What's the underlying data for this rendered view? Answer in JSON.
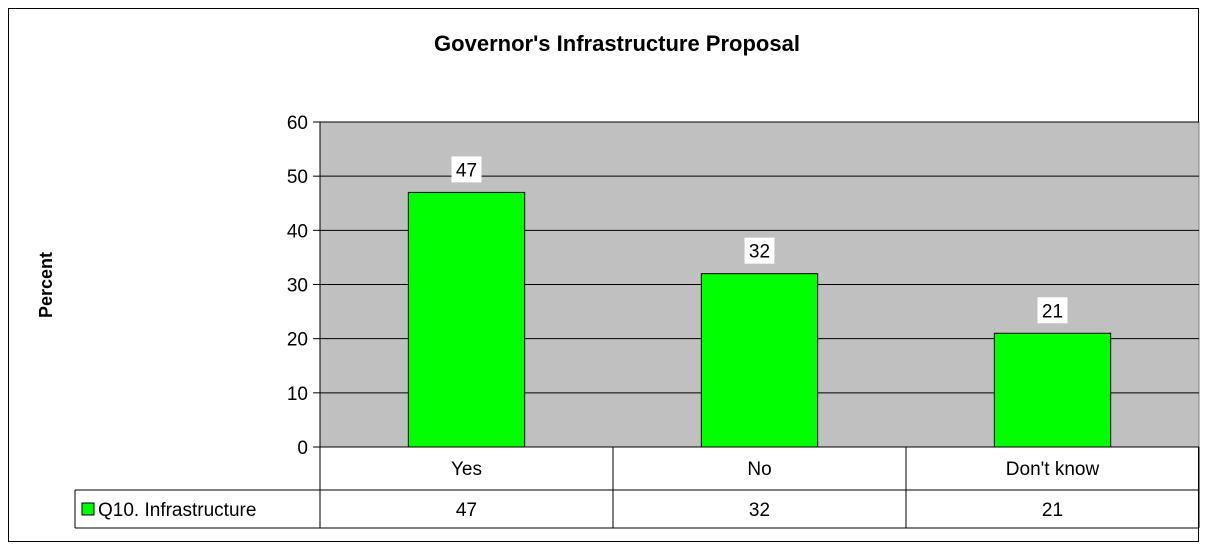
{
  "chart_data": {
    "type": "bar",
    "title": "Governor's Infrastructure Proposal",
    "ylabel": "Percent",
    "xlabel": "",
    "categories": [
      "Yes",
      "No",
      "Don't know"
    ],
    "series": [
      {
        "name": "Q10. Infrastructure",
        "values": [
          47,
          32,
          21
        ]
      }
    ],
    "data_labels": [
      "47",
      "32",
      "21"
    ],
    "ylim": [
      0,
      60
    ],
    "yticks": [
      "0",
      "10",
      "20",
      "30",
      "40",
      "50",
      "60"
    ],
    "grid": true,
    "legend": "data-table",
    "data_table": {
      "series_label": "Q10. Infrastructure",
      "values": [
        "47",
        "32",
        "21"
      ]
    },
    "colors": {
      "bar": "#00ff00",
      "plot_background": "#c0c0c0",
      "outline": "#000000"
    }
  }
}
